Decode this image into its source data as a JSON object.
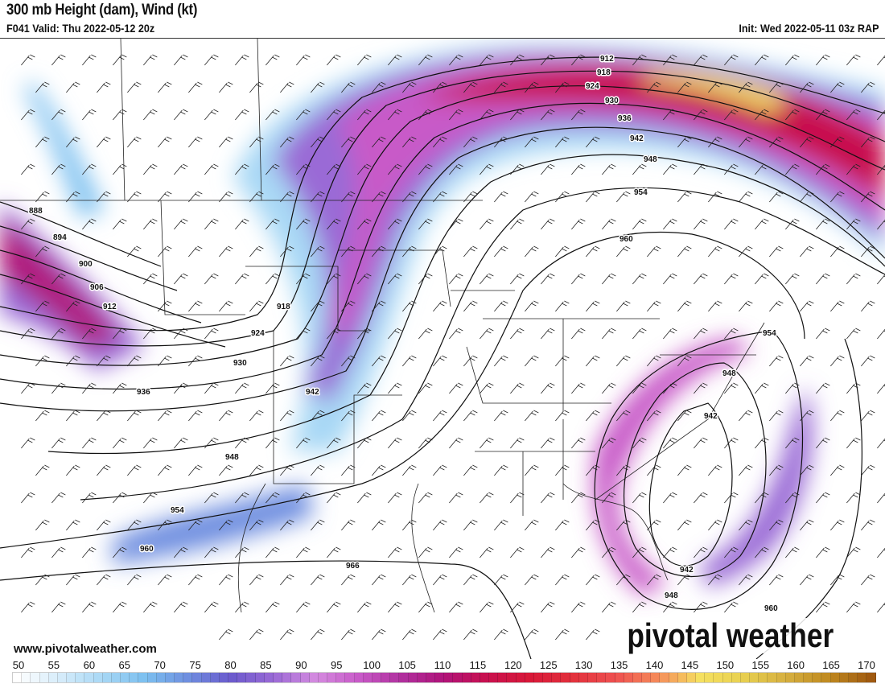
{
  "header": {
    "title": "300 mb Height (dam), Wind (kt)",
    "valid": "F041 Valid: Thu 2022-05-12 20z",
    "init": "Init: Wed 2022-05-11 03z RAP"
  },
  "footer": {
    "url": "www.pivotalweather.com",
    "brand": "pivotal weather"
  },
  "colorbar": {
    "ticks": [
      "50",
      "55",
      "60",
      "65",
      "70",
      "75",
      "80",
      "85",
      "90",
      "95",
      "100",
      "105",
      "110",
      "115",
      "120",
      "125",
      "130",
      "135",
      "140",
      "145",
      "150",
      "155",
      "160",
      "165",
      "170"
    ],
    "colors": [
      "#ffffff",
      "#d6ecfa",
      "#a8d8f5",
      "#7cc0f0",
      "#6f8fe0",
      "#6a5acd",
      "#9a6ad6",
      "#d58be0",
      "#c85ac8",
      "#b0309e",
      "#b0137a",
      "#c8104e",
      "#d81838",
      "#e2303c",
      "#ee5050",
      "#f58a5a",
      "#f5e060",
      "#e8d050",
      "#d6b040",
      "#c08a20",
      "#a05a10"
    ]
  },
  "contour_labels": [
    "888",
    "894",
    "900",
    "906",
    "912",
    "918",
    "924",
    "930",
    "936",
    "942",
    "948",
    "954",
    "960",
    "966",
    "912",
    "918",
    "924",
    "930",
    "936",
    "942",
    "948",
    "954",
    "960",
    "954",
    "948",
    "942",
    "942",
    "948",
    "960"
  ]
}
